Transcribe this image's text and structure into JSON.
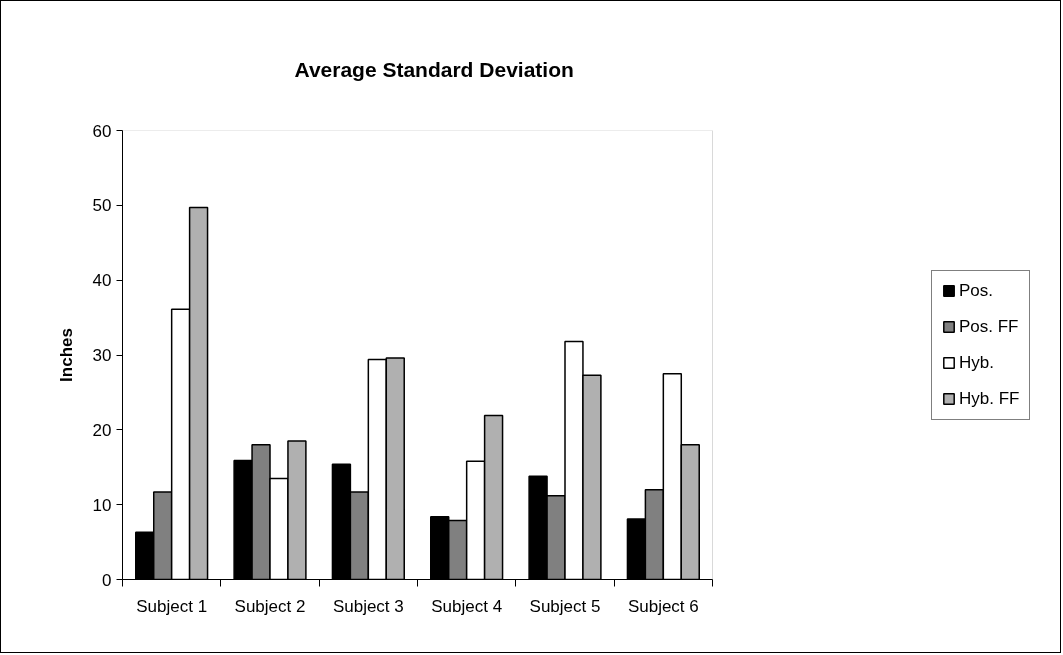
{
  "chart_data": {
    "type": "bar",
    "title": "Average Standard Deviation",
    "ylabel": "Inches",
    "categories": [
      "Subject 1",
      "Subject 2",
      "Subject 3",
      "Subject 4",
      "Subject 5",
      "Subject 6"
    ],
    "series": [
      {
        "name": "Pos.",
        "color": "#000000",
        "values": [
          6.3,
          15.9,
          15.4,
          8.4,
          13.8,
          8.1
        ]
      },
      {
        "name": "Pos. FF",
        "color": "#808080",
        "values": [
          11.7,
          18.0,
          11.7,
          7.9,
          11.2,
          12.0
        ]
      },
      {
        "name": "Hyb.",
        "color": "#ffffff",
        "values": [
          36.1,
          13.5,
          29.4,
          15.8,
          31.8,
          27.5
        ]
      },
      {
        "name": "Hyb. FF",
        "color": "#b0b0b0",
        "values": [
          49.7,
          18.5,
          29.6,
          21.9,
          27.3,
          18.0
        ]
      }
    ],
    "ylim": [
      0,
      60
    ],
    "yticks": [
      0,
      10,
      20,
      30,
      40,
      50,
      60
    ],
    "legend": "right"
  }
}
